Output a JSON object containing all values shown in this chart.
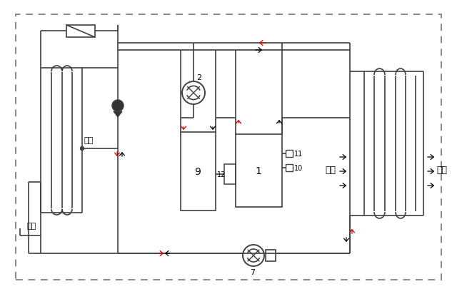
{
  "bg_color": "#ffffff",
  "line_color": "#404040",
  "red_color": "#cc0000",
  "black_color": "#000000",
  "labels": {
    "jin_shui": "进水",
    "chu_shui": "出水",
    "jin_feng": "进风",
    "chu_feng": "出风",
    "num_2": "2",
    "num_7": "7",
    "num_9": "9",
    "num_1": "1",
    "num_10": "10",
    "num_11": "11",
    "num_12": "12"
  }
}
